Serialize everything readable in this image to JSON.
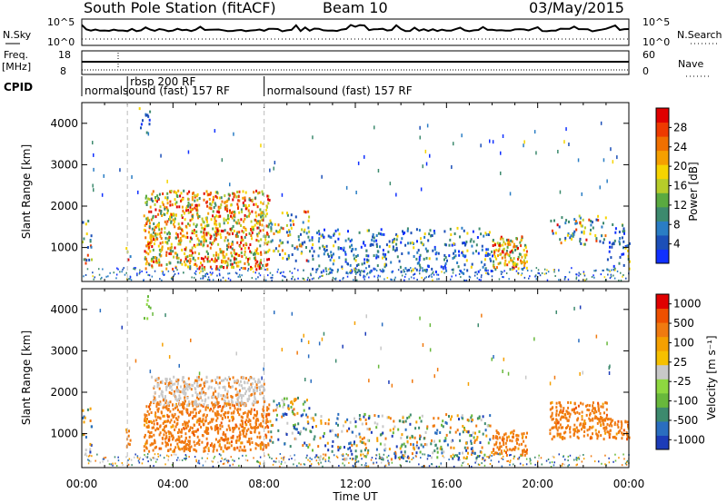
{
  "header": {
    "station": "South Pole Station (fitACF)",
    "beam": "Beam 10",
    "date": "03/May/2015"
  },
  "noise_panel": {
    "left_label": "N.Sky",
    "right_label": "N.Search",
    "left_ticks": [
      "10^5",
      "10^0"
    ],
    "right_ticks": [
      "10^5",
      "10^0"
    ]
  },
  "freq_panel": {
    "left_label_line1": "Freq.",
    "left_label_line2": "[MHz]",
    "right_label": "Nave",
    "left_ticks": [
      "18",
      "8"
    ],
    "right_ticks": [
      "60",
      "0"
    ]
  },
  "cpid": {
    "label": "CPID",
    "segments": [
      {
        "start_h": 0.0,
        "end_h": 2.0,
        "name": "normalsound (fast) 157 RF",
        "row": 2
      },
      {
        "start_h": 2.0,
        "end_h": 8.0,
        "name": "rbsp 200 RF",
        "row": 1
      },
      {
        "start_h": 8.0,
        "end_h": 24.0,
        "name": "normalsound (fast) 157 RF",
        "row": 2
      }
    ]
  },
  "x_axis": {
    "label": "Time UT",
    "ticks": [
      "00:00",
      "04:00",
      "08:00",
      "12:00",
      "16:00",
      "20:00",
      "00:00"
    ]
  },
  "chart_data": [
    {
      "type": "heatmap",
      "title": "",
      "ylabel": "Slant Range [km]",
      "xlim_hours": [
        0,
        24
      ],
      "ylim_km": [
        180,
        4500
      ],
      "yticks": [
        "1000",
        "2000",
        "3000",
        "4000"
      ],
      "colorbar": {
        "label": "Power [dB]",
        "ticks": [
          "4",
          "8",
          "12",
          "16",
          "20",
          "24",
          "28"
        ],
        "colors": [
          "#1030ff",
          "#1c4fb8",
          "#2a7dc4",
          "#3d8a6e",
          "#5aaa40",
          "#b6cc2a",
          "#f6d400",
          "#f5a000",
          "#f07000",
          "#ee3a00",
          "#e00000"
        ]
      },
      "echo_regions": [
        {
          "t_start": 0.0,
          "t_end": 0.4,
          "r_min": 500,
          "r_max": 1700,
          "level": "medium"
        },
        {
          "t_start": 1.9,
          "t_end": 2.1,
          "r_min": 700,
          "r_max": 1200,
          "level": "medium"
        },
        {
          "t_start": 2.5,
          "t_end": 3.0,
          "r_min": 3800,
          "r_max": 4400,
          "level": "low"
        },
        {
          "t_start": 2.7,
          "t_end": 8.2,
          "r_min": 500,
          "r_max": 2400,
          "level": "high"
        },
        {
          "t_start": 8.2,
          "t_end": 10.0,
          "r_min": 700,
          "r_max": 1900,
          "level": "medium"
        },
        {
          "t_start": 10.0,
          "t_end": 18.0,
          "r_min": 400,
          "r_max": 1500,
          "level": "low"
        },
        {
          "t_start": 18.0,
          "t_end": 19.5,
          "r_min": 500,
          "r_max": 1300,
          "level": "high"
        },
        {
          "t_start": 20.5,
          "t_end": 23.0,
          "r_min": 1100,
          "r_max": 1800,
          "level": "medium"
        },
        {
          "t_start": 23.0,
          "t_end": 24.0,
          "r_min": 500,
          "r_max": 1600,
          "level": "low"
        }
      ]
    },
    {
      "type": "heatmap",
      "title": "",
      "ylabel": "Slant Range [km]",
      "xlim_hours": [
        0,
        24
      ],
      "ylim_km": [
        180,
        4500
      ],
      "yticks": [
        "1000",
        "2000",
        "3000",
        "4000"
      ],
      "colorbar": {
        "label": "Velocity [m s⁻¹]",
        "ticks": [
          "1000",
          "500",
          "100",
          "25",
          "-25",
          "-100",
          "-500",
          "-1000"
        ],
        "colors": [
          "#1c3cb8",
          "#2a6ec0",
          "#3d8a6e",
          "#68b83c",
          "#8ed840",
          "#c8c8c8",
          "#f6c000",
          "#f5a000",
          "#f07a10",
          "#ee5000",
          "#e00000"
        ]
      },
      "echo_regions": [
        {
          "t_start": 0.0,
          "t_end": 0.4,
          "r_min": 500,
          "r_max": 1700,
          "color": "mixed"
        },
        {
          "t_start": 1.9,
          "t_end": 2.1,
          "r_min": 700,
          "r_max": 1200,
          "color": "orange"
        },
        {
          "t_start": 2.7,
          "t_end": 3.0,
          "r_min": 3800,
          "r_max": 4400,
          "color": "green"
        },
        {
          "t_start": 2.7,
          "t_end": 8.2,
          "r_min": 600,
          "r_max": 1800,
          "color": "orange"
        },
        {
          "t_start": 3.0,
          "t_end": 8.0,
          "r_min": 1700,
          "r_max": 2400,
          "color": "gray"
        },
        {
          "t_start": 8.2,
          "t_end": 10.0,
          "r_min": 700,
          "r_max": 1900,
          "color": "mixed"
        },
        {
          "t_start": 10.0,
          "t_end": 18.0,
          "r_min": 400,
          "r_max": 1500,
          "color": "mixed"
        },
        {
          "t_start": 18.0,
          "t_end": 19.5,
          "r_min": 500,
          "r_max": 1100,
          "color": "orange"
        },
        {
          "t_start": 20.5,
          "t_end": 23.0,
          "r_min": 900,
          "r_max": 1800,
          "color": "orange"
        },
        {
          "t_start": 23.0,
          "t_end": 24.0,
          "r_min": 900,
          "r_max": 1400,
          "color": "orange"
        }
      ]
    }
  ]
}
